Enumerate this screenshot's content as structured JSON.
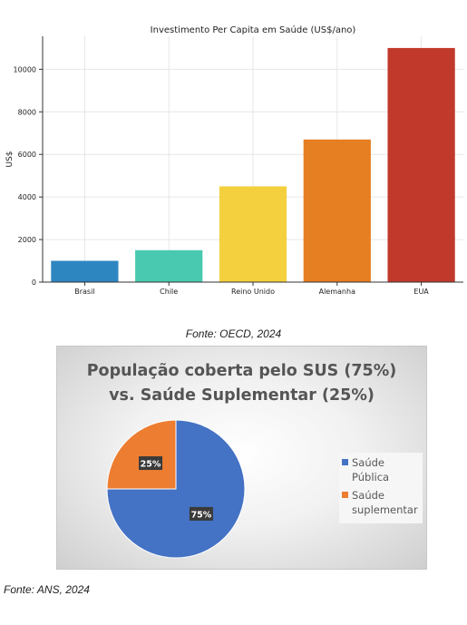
{
  "chart_data": [
    {
      "type": "bar",
      "title": "Investimento Per Capita em Saúde (US$/ano)",
      "xlabel": "",
      "ylabel": "US$",
      "categories": [
        "Brasil",
        "Chile",
        "Reino Unido",
        "Alemanha",
        "EUA"
      ],
      "values": [
        1000,
        1500,
        4500,
        6700,
        11000
      ],
      "colors": [
        "#2e86c1",
        "#48c9b0",
        "#f4d03f",
        "#e67e22",
        "#c0392b"
      ],
      "ylim": [
        0,
        11550
      ],
      "yticks": [
        0,
        2000,
        4000,
        6000,
        8000,
        10000
      ],
      "grid": true
    },
    {
      "type": "pie",
      "title_lines": [
        "População coberta pelo SUS (75%)",
        "vs. Saúde Suplementar (25%)"
      ],
      "slices": [
        {
          "label": "Saúde Pública",
          "value": 75,
          "data_label": "75%",
          "color": "#4472c4"
        },
        {
          "label": "Saúde suplementar",
          "value": 25,
          "data_label": "25%",
          "color": "#ed7d31"
        }
      ],
      "legend_lines": [
        [
          "Saúde",
          "Pública"
        ],
        [
          "Saúde",
          "suplementar"
        ]
      ],
      "legend_position": "right"
    }
  ],
  "captions": {
    "source1": "Fonte: OECD, 2024",
    "source2": "Fonte: ANS, 2024"
  }
}
